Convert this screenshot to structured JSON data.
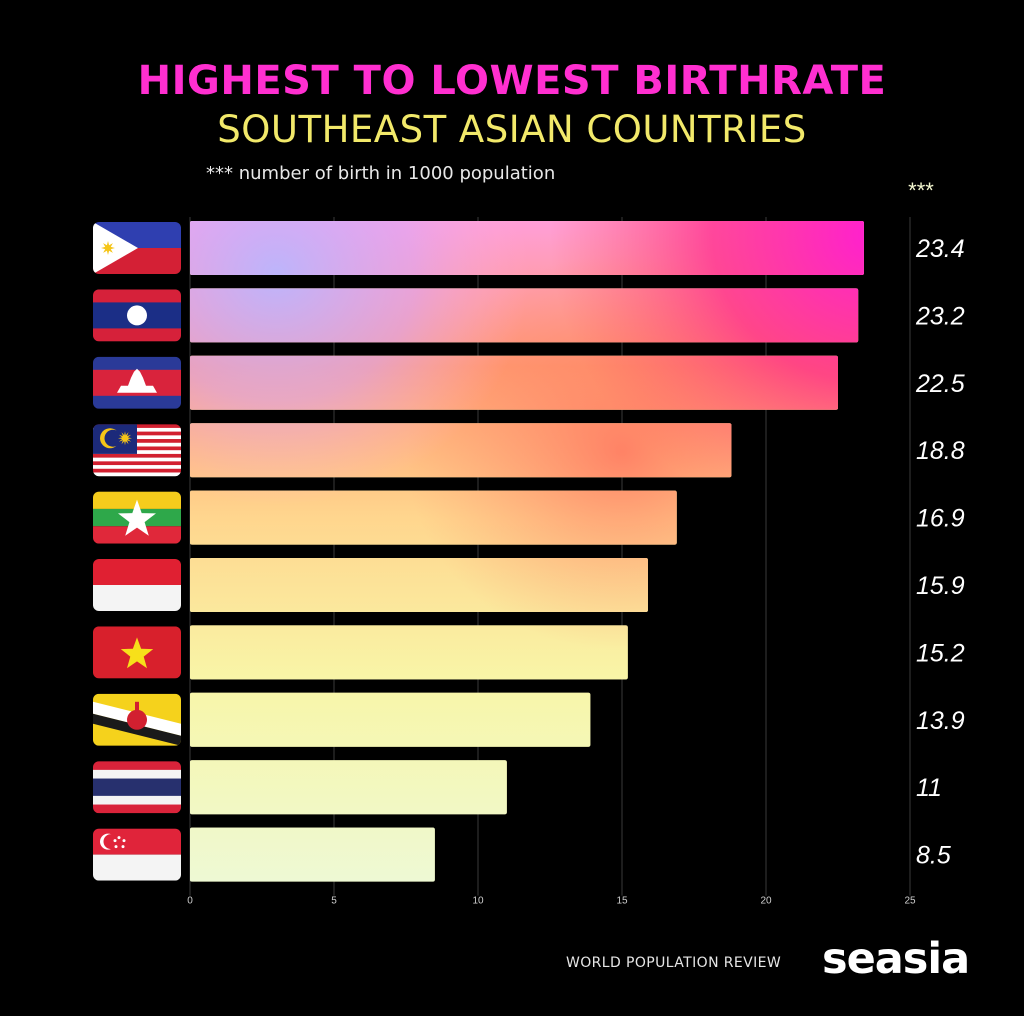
{
  "colors": {
    "title": "#ff2fd0",
    "subtitle": "#f2e96a",
    "background": "#000000",
    "grid": "#3a3a3a"
  },
  "header": {
    "title": "HIGHEST TO LOWEST BIRTHRATE",
    "subtitle": "SOUTHEAST ASIAN COUNTRIES",
    "note": "*** number of birth in 1000 population",
    "value_column_label": "***"
  },
  "footer": {
    "source": "WORLD POPULATION REVIEW",
    "logo": "seasia"
  },
  "chart_data": {
    "type": "bar",
    "orientation": "horizontal",
    "categories_as_flags": true,
    "categories": [
      "philippines-flag-icon",
      "laos-flag-icon",
      "cambodia-flag-icon",
      "malaysia-flag-icon",
      "myanmar-flag-icon",
      "indonesia-flag-icon",
      "vietnam-flag-icon",
      "brunei-flag-icon",
      "thailand-flag-icon",
      "singapore-flag-icon"
    ],
    "values": [
      23.4,
      23.2,
      22.5,
      18.8,
      16.9,
      15.9,
      15.2,
      13.9,
      11,
      8.5
    ],
    "value_labels": [
      "23.4",
      "23.2",
      "22.5",
      "18.8",
      "16.9",
      "15.9",
      "15.2",
      "13.9",
      "11",
      "8.5"
    ],
    "xlim": [
      0,
      25
    ],
    "xticks": [
      0,
      5,
      10,
      15,
      20,
      25
    ],
    "grid": true,
    "title": "HIGHEST TO LOWEST BIRTHRATE",
    "subtitle": "SOUTHEAST ASIAN COUNTRIES"
  }
}
